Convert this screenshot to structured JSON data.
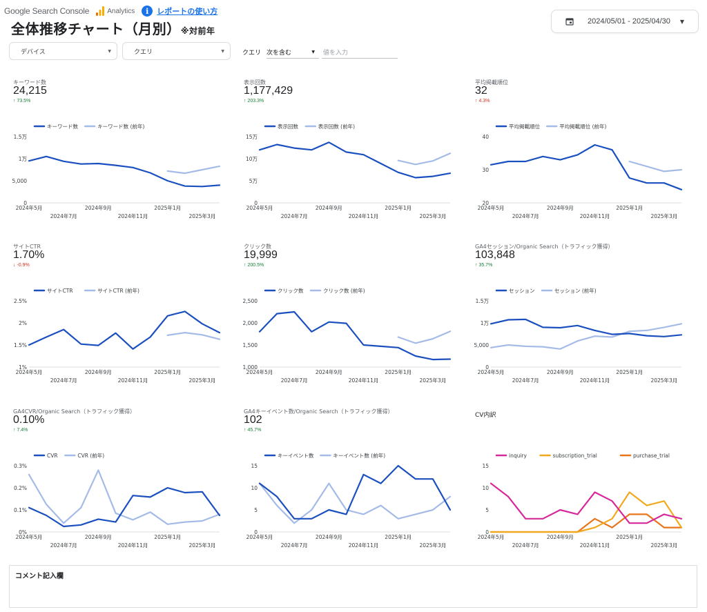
{
  "header": {
    "gsc_label": "Google Search Console",
    "ga_label": "Analytics",
    "howto_label": "レポートの使い方",
    "info_glyph": "i",
    "title": "全体推移チャート（月別）",
    "title_suffix": "※対前年"
  },
  "date_range": {
    "value": "2024/05/01 - 2025/04/30",
    "icon": "calendar-icon"
  },
  "filters": {
    "device_label": "デバイス",
    "query_dd_label": "クエリ",
    "query_label": "クエリ",
    "query_operator": "次を含む",
    "query_placeholder": "値を入力"
  },
  "colors": {
    "current": "#1a4fbf",
    "previous": "#a4bbe8",
    "inquiry": "#d6289a",
    "subscription_trial": "#f2a81d",
    "purchase_trial": "#e8751a",
    "up": "#188038",
    "down": "#d93025"
  },
  "kpis": [
    {
      "label": "キーワード数",
      "value": "24,215",
      "delta": "73.5%",
      "dir": "up",
      "arrow": "↑"
    },
    {
      "label": "表示回数",
      "value": "1,177,429",
      "delta": "203.3%",
      "dir": "up",
      "arrow": "↑"
    },
    {
      "label": "平均掲載順位",
      "value": "32",
      "delta": "4.3%",
      "dir": "down",
      "arrow": "↑"
    },
    {
      "label": "サイトCTR",
      "value": "1.70%",
      "delta": "-0.9%",
      "dir": "down",
      "arrow": "↓"
    },
    {
      "label": "クリック数",
      "value": "19,999",
      "delta": "200.5%",
      "dir": "up",
      "arrow": "↑"
    },
    {
      "label": "GA4セッション/Organic Search（トラフィック獲得）",
      "value": "103,848",
      "delta": "35.7%",
      "dir": "up",
      "arrow": "↑"
    },
    {
      "label": "GA4CVR/Organic Search（トラフィック獲得）",
      "value": "0.10%",
      "delta": "7.4%",
      "dir": "up",
      "arrow": "↑"
    },
    {
      "label": "GA4キーイベント数/Organic Search（トラフィック獲得）",
      "value": "102",
      "delta": "45.7%",
      "dir": "up",
      "arrow": "↑"
    }
  ],
  "cv_title": "CV内訳",
  "comment_label": "コメント記入欄",
  "chart_data": [
    {
      "type": "line",
      "id": "keywords",
      "series": [
        {
          "name": "キーワード数",
          "values": [
            9500,
            10500,
            9400,
            8800,
            8900,
            8500,
            8000,
            6800,
            5000,
            3800,
            3700,
            4000
          ]
        },
        {
          "name": "キーワード数 (前年)",
          "values": [
            null,
            null,
            null,
            null,
            null,
            null,
            null,
            null,
            7200,
            6700,
            7500,
            8300
          ]
        }
      ],
      "ylim": [
        0,
        15000
      ],
      "yticks": [
        0,
        5000,
        10000,
        15000
      ],
      "ytick_labels": [
        "0",
        "5,000",
        "1万",
        "1.5万"
      ]
    },
    {
      "type": "line",
      "id": "impressions",
      "series": [
        {
          "name": "表示回数",
          "values": [
            120000,
            132000,
            124000,
            120000,
            137000,
            115000,
            109000,
            89000,
            69000,
            57000,
            60000,
            67000
          ]
        },
        {
          "name": "表示回数 (前年)",
          "values": [
            null,
            null,
            null,
            null,
            null,
            null,
            null,
            null,
            96000,
            87000,
            95000,
            112000
          ]
        }
      ],
      "ylim": [
        0,
        150000
      ],
      "yticks": [
        0,
        50000,
        100000,
        150000
      ],
      "ytick_labels": [
        "0",
        "5万",
        "10万",
        "15万"
      ]
    },
    {
      "type": "line",
      "id": "position",
      "series": [
        {
          "name": "平均掲載順位",
          "values": [
            31.5,
            32.5,
            32.5,
            34,
            33,
            34.5,
            37.5,
            36,
            27.5,
            26,
            26,
            24
          ]
        },
        {
          "name": "平均掲載順位 (前年)",
          "values": [
            null,
            null,
            null,
            null,
            null,
            null,
            null,
            null,
            32.5,
            31,
            29.5,
            30
          ]
        }
      ],
      "ylim": [
        20,
        40
      ],
      "yticks": [
        20,
        30,
        40
      ],
      "ytick_labels": [
        "20",
        "30",
        "40"
      ]
    },
    {
      "type": "line",
      "id": "ctr",
      "series": [
        {
          "name": "サイトCTR",
          "values": [
            1.5,
            1.68,
            1.85,
            1.52,
            1.49,
            1.77,
            1.41,
            1.68,
            2.16,
            2.26,
            1.98,
            1.78
          ]
        },
        {
          "name": "サイトCTR (前年)",
          "values": [
            null,
            null,
            null,
            null,
            null,
            null,
            null,
            null,
            1.72,
            1.78,
            1.73,
            1.63
          ]
        }
      ],
      "ylim": [
        1,
        2.5
      ],
      "yticks": [
        1,
        1.5,
        2,
        2.5
      ],
      "ytick_labels": [
        "1%",
        "1.5%",
        "2%",
        "2.5%"
      ]
    },
    {
      "type": "line",
      "id": "clicks",
      "series": [
        {
          "name": "クリック数",
          "values": [
            1800,
            2210,
            2250,
            1800,
            2020,
            1990,
            1500,
            1470,
            1440,
            1250,
            1170,
            1180
          ]
        },
        {
          "name": "クリック数 (前年)",
          "values": [
            null,
            null,
            null,
            null,
            null,
            null,
            null,
            null,
            1680,
            1540,
            1640,
            1810
          ]
        }
      ],
      "ylim": [
        1000,
        2500
      ],
      "yticks": [
        1000,
        1500,
        2000,
        2500
      ],
      "ytick_labels": [
        "1,000",
        "1,500",
        "2,000",
        "2,500"
      ]
    },
    {
      "type": "line",
      "id": "sessions",
      "series": [
        {
          "name": "セッション",
          "values": [
            9800,
            10700,
            10800,
            9000,
            8900,
            9400,
            8300,
            7400,
            7600,
            7100,
            6900,
            7300
          ]
        },
        {
          "name": "セッション (前年)",
          "values": [
            4400,
            5000,
            4700,
            4600,
            4100,
            5900,
            7000,
            6800,
            8100,
            8300,
            9000,
            9800
          ]
        }
      ],
      "ylim": [
        0,
        15000
      ],
      "yticks": [
        0,
        5000,
        10000,
        15000
      ],
      "ytick_labels": [
        "0",
        "5,000",
        "1万",
        "1.5万"
      ]
    },
    {
      "type": "line",
      "id": "cvr",
      "series": [
        {
          "name": "CVR",
          "values": [
            0.11,
            0.075,
            0.025,
            0.032,
            0.058,
            0.045,
            0.165,
            0.158,
            0.2,
            0.178,
            0.182,
            0.075
          ]
        },
        {
          "name": "CVR (前年)",
          "values": [
            0.26,
            0.125,
            0.04,
            0.11,
            0.28,
            0.085,
            0.055,
            0.09,
            0.035,
            0.045,
            0.05,
            0.08
          ]
        }
      ],
      "ylim": [
        0,
        0.3
      ],
      "yticks": [
        0,
        0.1,
        0.2,
        0.3
      ],
      "ytick_labels": [
        "0%",
        "0.1%",
        "0.2%",
        "0.3%"
      ]
    },
    {
      "type": "line",
      "id": "key_events",
      "series": [
        {
          "name": "キーイベント数",
          "values": [
            11,
            8,
            3,
            3,
            5,
            4,
            13,
            11,
            15,
            12,
            12,
            5
          ]
        },
        {
          "name": "キーイベント数 (前年)",
          "values": [
            11,
            6,
            2,
            5,
            11,
            5,
            4,
            6,
            3,
            4,
            5,
            8
          ]
        }
      ],
      "ylim": [
        0,
        15
      ],
      "yticks": [
        0,
        5,
        10,
        15
      ],
      "ytick_labels": [
        "0",
        "5",
        "10",
        "15"
      ]
    },
    {
      "type": "line",
      "id": "cv_breakdown",
      "title": "CV内訳",
      "series": [
        {
          "name": "inquiry",
          "values": [
            11,
            8,
            3,
            3,
            5,
            4,
            9,
            7,
            2,
            2,
            4,
            3
          ]
        },
        {
          "name": "subscription_trial",
          "values": [
            0,
            0,
            0,
            0,
            0,
            0,
            1,
            3,
            9,
            6,
            7,
            1
          ]
        },
        {
          "name": "purchase_trial",
          "values": [
            0,
            0,
            0,
            0,
            0,
            0,
            3,
            1,
            4,
            4,
            1,
            1
          ]
        }
      ],
      "ylim": [
        0,
        15
      ],
      "yticks": [
        0,
        5,
        10,
        15
      ],
      "ytick_labels": [
        "0",
        "5",
        "10",
        "15"
      ]
    }
  ],
  "x_ticks_top": [
    "2024年5月",
    "2024年9月",
    "2025年1月"
  ],
  "x_ticks_bottom": [
    "2024年7月",
    "2024年11月",
    "2025年3月"
  ]
}
